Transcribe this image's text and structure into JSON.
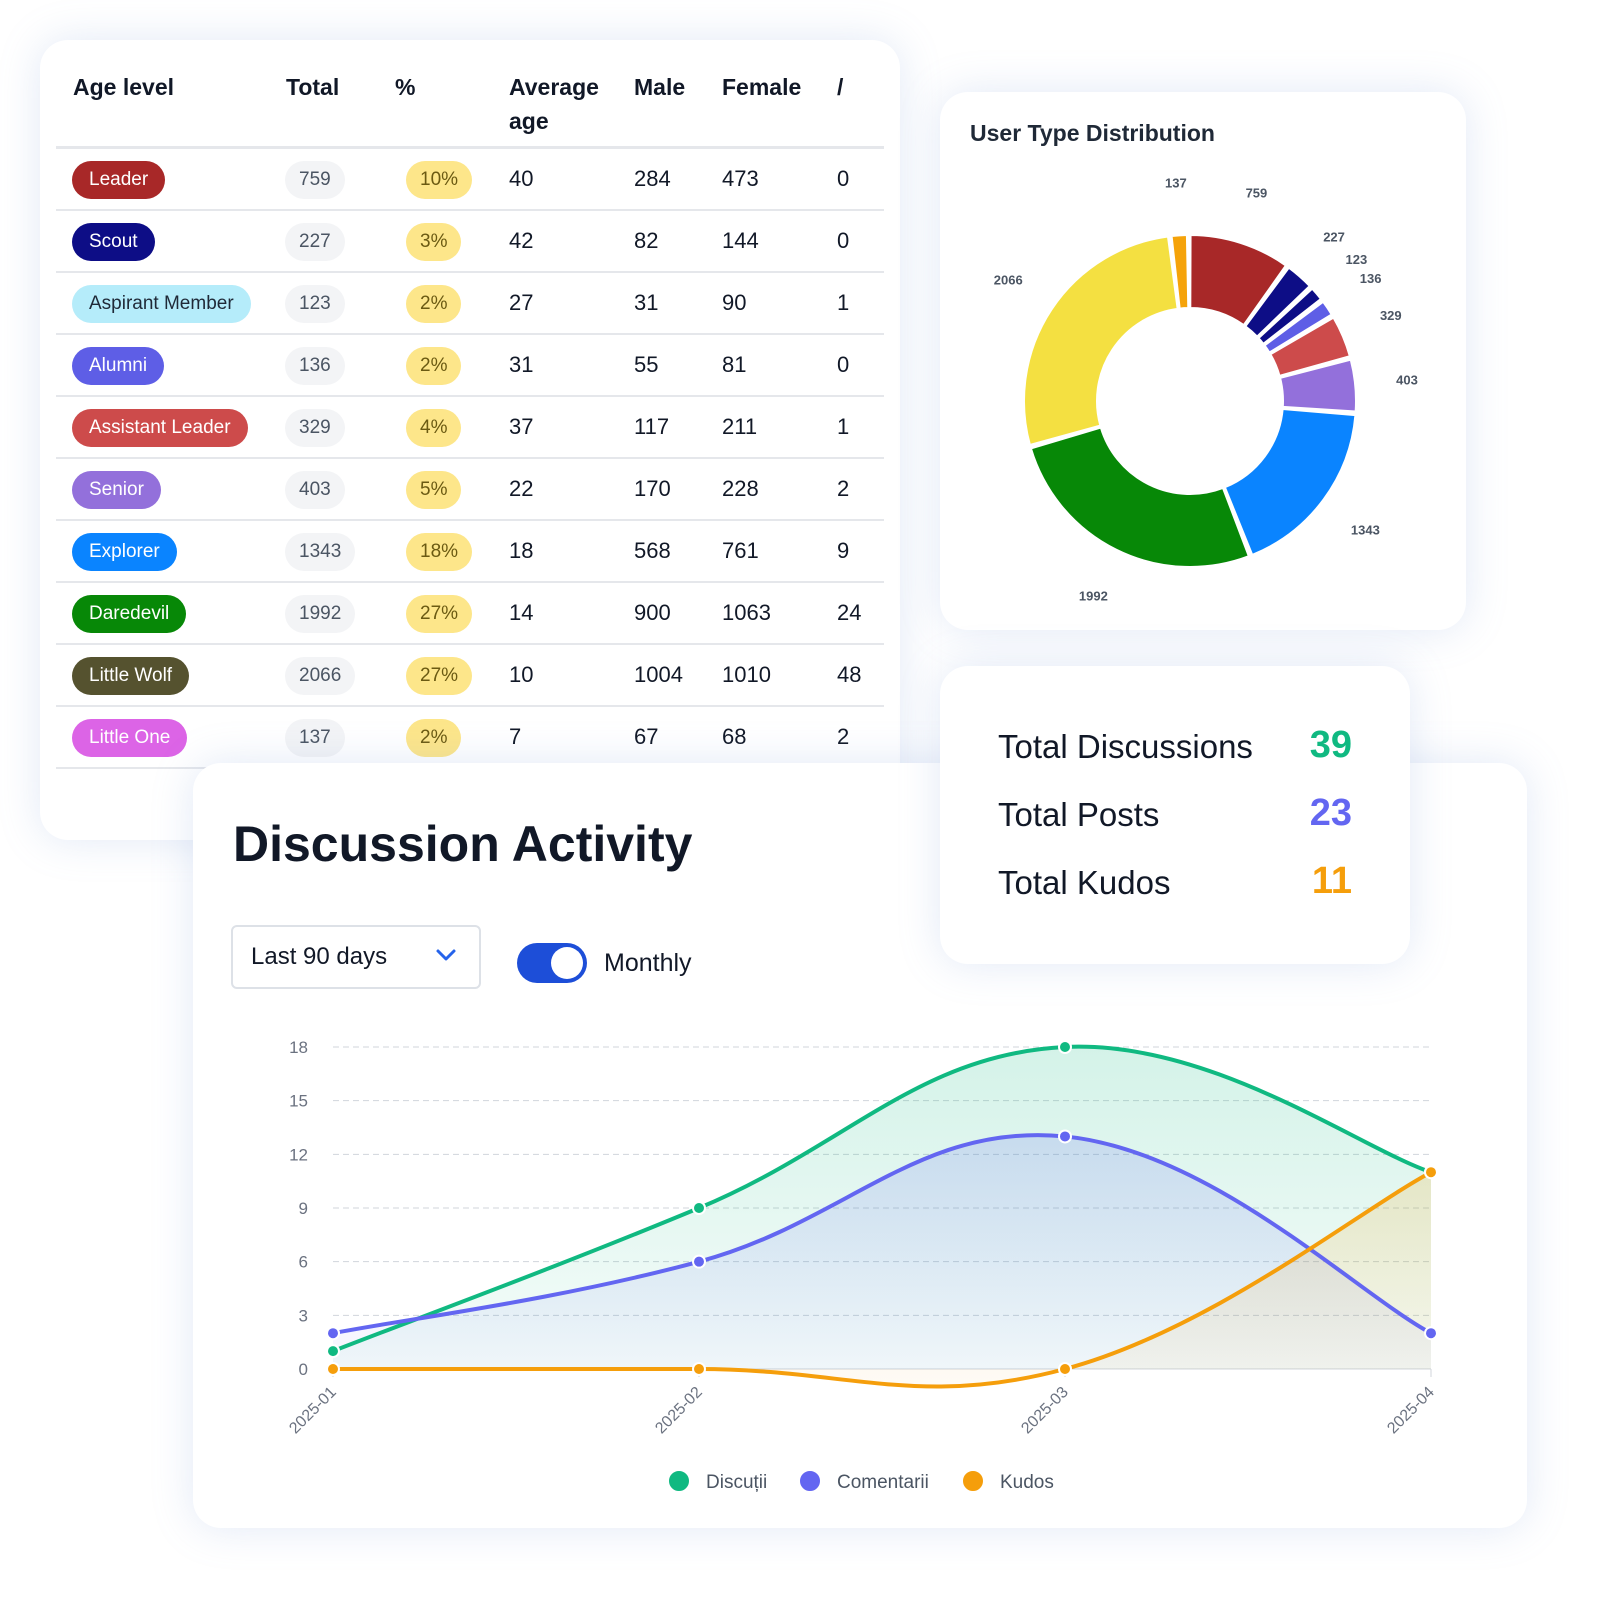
{
  "age_table": {
    "headers": {
      "age_level": "Age level",
      "total": "Total",
      "percent": "%",
      "average_age_1": "Average",
      "average_age_2": "age",
      "male": "Male",
      "female": "Female",
      "other": "/"
    },
    "rows": [
      {
        "level": "Leader",
        "color": "#a82828",
        "total": "759",
        "percent": "10%",
        "avg_age": "40",
        "male": "284",
        "female": "473",
        "other": "0"
      },
      {
        "level": "Scout",
        "color": "#0d0d86",
        "total": "227",
        "percent": "3%",
        "avg_age": "42",
        "male": "82",
        "female": "144",
        "other": "0"
      },
      {
        "level": "Aspirant Member",
        "color": "#b5ecfa",
        "total": "123",
        "percent": "2%",
        "avg_age": "27",
        "male": "31",
        "female": "90",
        "other": "1"
      },
      {
        "level": "Alumni",
        "color": "#5e5ee6",
        "total": "136",
        "percent": "2%",
        "avg_age": "31",
        "male": "55",
        "female": "81",
        "other": "0"
      },
      {
        "level": "Assistant Leader",
        "color": "#cd4b4b",
        "total": "329",
        "percent": "4%",
        "avg_age": "37",
        "male": "117",
        "female": "211",
        "other": "1"
      },
      {
        "level": "Senior",
        "color": "#9370db",
        "total": "403",
        "percent": "5%",
        "avg_age": "22",
        "male": "170",
        "female": "228",
        "other": "2"
      },
      {
        "level": "Explorer",
        "color": "#0a84ff",
        "total": "1343",
        "percent": "18%",
        "avg_age": "18",
        "male": "568",
        "female": "761",
        "other": "9"
      },
      {
        "level": "Daredevil",
        "color": "#078807",
        "total": "1992",
        "percent": "27%",
        "avg_age": "14",
        "male": "900",
        "female": "1063",
        "other": "24"
      },
      {
        "level": "Little Wolf",
        "color": "#55522f",
        "total": "2066",
        "percent": "27%",
        "avg_age": "10",
        "male": "1004",
        "female": "1010",
        "other": "48"
      },
      {
        "level": "Little One",
        "color": "#dc64e6",
        "total": "137",
        "percent": "2%",
        "avg_age": "7",
        "male": "67",
        "female": "68",
        "other": "2"
      }
    ]
  },
  "user_type_distribution": {
    "title": "User Type Distribution",
    "chart_data": {
      "type": "pie",
      "variant": "donut",
      "slices": [
        {
          "value": 137,
          "color": "#f5a30a"
        },
        {
          "value": 759,
          "color": "#a82828"
        },
        {
          "value": 227,
          "color": "#0d0d86"
        },
        {
          "value": 123,
          "color": "#0d0d86"
        },
        {
          "value": 136,
          "color": "#5e5ee6"
        },
        {
          "value": 329,
          "color": "#cd4b4b"
        },
        {
          "value": 403,
          "color": "#9370db"
        },
        {
          "value": 1343,
          "color": "#0a84ff"
        },
        {
          "value": 1992,
          "color": "#078807"
        },
        {
          "value": 2066,
          "color": "#f4e041"
        }
      ]
    }
  },
  "stats": {
    "discussions_label": "Total Discussions",
    "discussions_value": "39",
    "discussions_color": "#10b981",
    "posts_label": "Total Posts",
    "posts_value": "23",
    "posts_color": "#6366f1",
    "kudos_label": "Total Kudos",
    "kudos_value": "11",
    "kudos_color": "#f59e0b"
  },
  "activity": {
    "title": "Discussion Activity",
    "range_select": {
      "value": "Last 90 days",
      "icon": "chevron-down-icon"
    },
    "toggle": {
      "label": "Monthly",
      "state": "on"
    },
    "chart_data": {
      "type": "area",
      "x": [
        "2025-01",
        "2025-02",
        "2025-03",
        "2025-04"
      ],
      "series": [
        {
          "name": "Discuții",
          "values": [
            1,
            9,
            18,
            11
          ],
          "color": "#10b981"
        },
        {
          "name": "Comentarii",
          "values": [
            2,
            6,
            13,
            2
          ],
          "color": "#6366f1"
        },
        {
          "name": "Kudos",
          "values": [
            0,
            0,
            0,
            11
          ],
          "color": "#f59e0b"
        }
      ],
      "ylim": [
        0,
        18
      ],
      "yticks": [
        "0",
        "3",
        "6",
        "9",
        "12",
        "15",
        "18"
      ],
      "grid": true,
      "legend": "bottom"
    }
  }
}
